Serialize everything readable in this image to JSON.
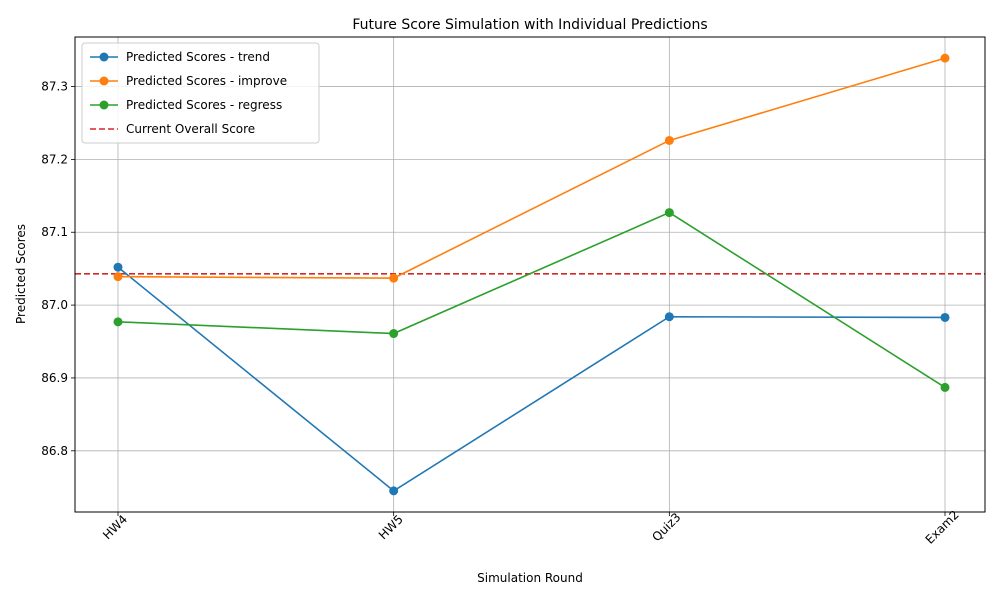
{
  "chart_data": {
    "type": "line",
    "title": "Future Score Simulation with Individual Predictions",
    "xlabel": "Simulation Round",
    "ylabel": "Predicted Scores",
    "categories": [
      "HW4",
      "HW5",
      "Quiz3",
      "Exam2"
    ],
    "ylim": [
      86.716,
      87.368
    ],
    "yticks": [
      "86.8",
      "86.9",
      "87.0",
      "87.1",
      "87.2",
      "87.3"
    ],
    "grid": true,
    "legend_position": "upper-left",
    "series": [
      {
        "name": "Predicted Scores - trend",
        "color": "#1f77b4",
        "values": [
          87.052,
          86.745,
          86.984,
          86.983
        ]
      },
      {
        "name": "Predicted Scores - improve",
        "color": "#ff7f0e",
        "values": [
          87.039,
          87.037,
          87.226,
          87.339
        ]
      },
      {
        "name": "Predicted Scores - regress",
        "color": "#2ca02c",
        "values": [
          86.977,
          86.961,
          87.127,
          86.887
        ]
      }
    ],
    "reference_line": {
      "name": "Current Overall Score",
      "value": 87.043,
      "color": "#d62728",
      "style": "dashed"
    }
  }
}
